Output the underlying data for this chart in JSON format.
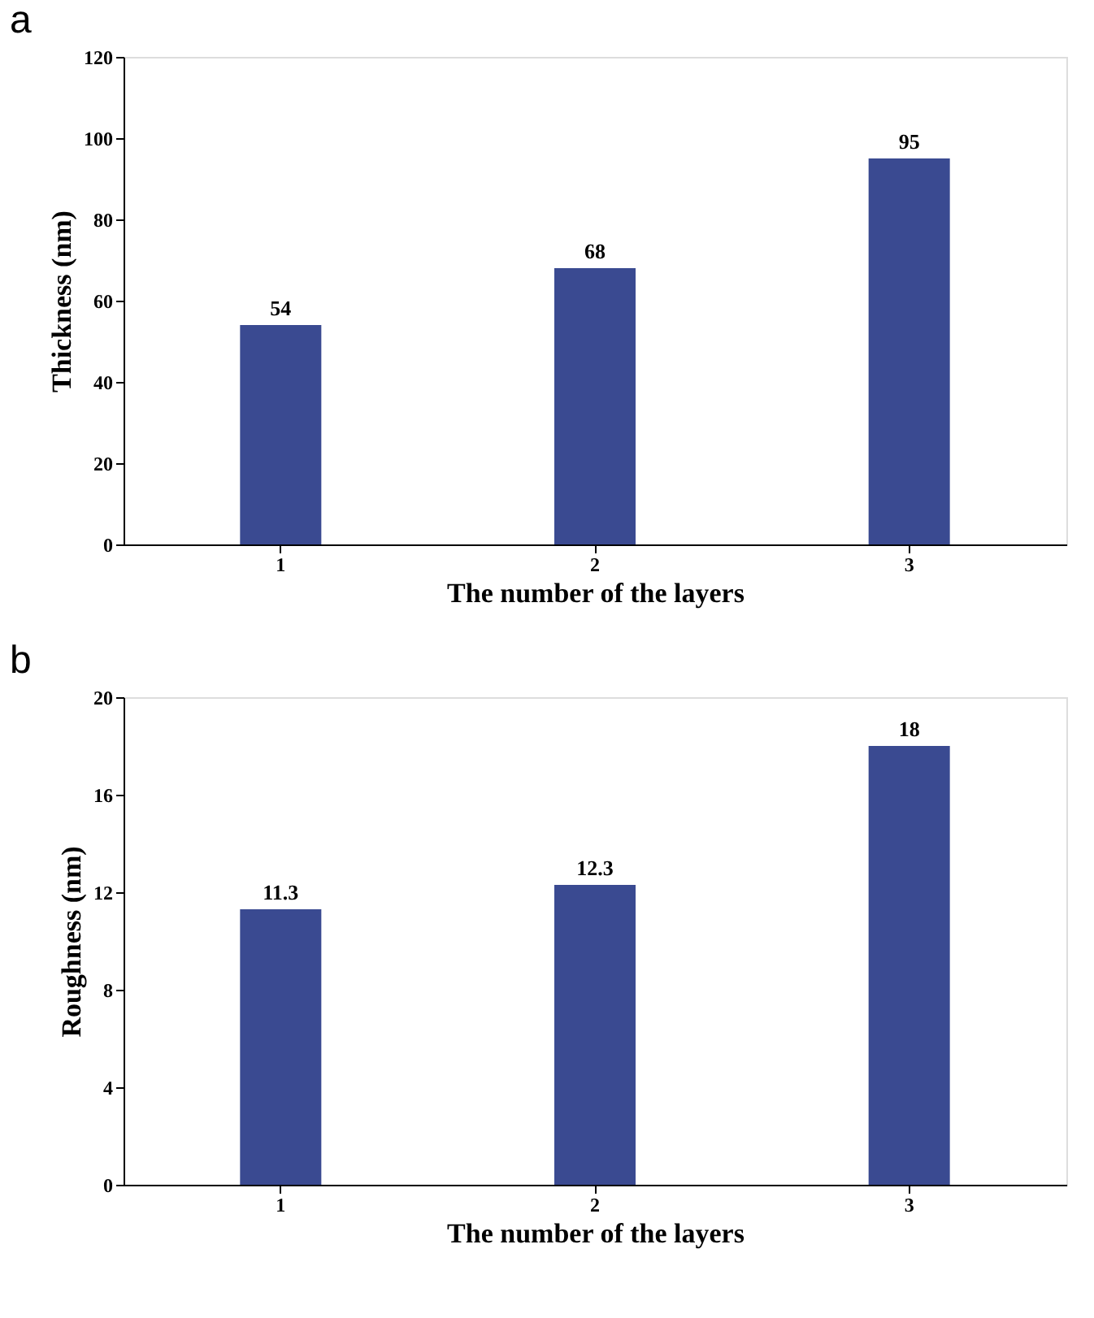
{
  "chart_data": [
    {
      "type": "bar",
      "title": "a",
      "xlabel": "The number of the layers",
      "ylabel": "Thickness (nm)",
      "categories": [
        "1",
        "2",
        "3"
      ],
      "values": [
        54,
        68,
        95
      ],
      "color": "#3a4a91",
      "ylim": [
        0,
        120
      ],
      "yticks": [
        0,
        20,
        40,
        60,
        80,
        100,
        120
      ],
      "data_labels": true,
      "grid": false
    },
    {
      "type": "bar",
      "title": "b",
      "xlabel": "The number of the layers",
      "ylabel": "Roughness (nm)",
      "categories": [
        "1",
        "2",
        "3"
      ],
      "values": [
        11.3,
        12.3,
        18
      ],
      "color": "#3a4a91",
      "ylim": [
        0,
        20
      ],
      "yticks": [
        0,
        4,
        8,
        12,
        16,
        20
      ],
      "data_labels": true,
      "grid": false
    }
  ]
}
